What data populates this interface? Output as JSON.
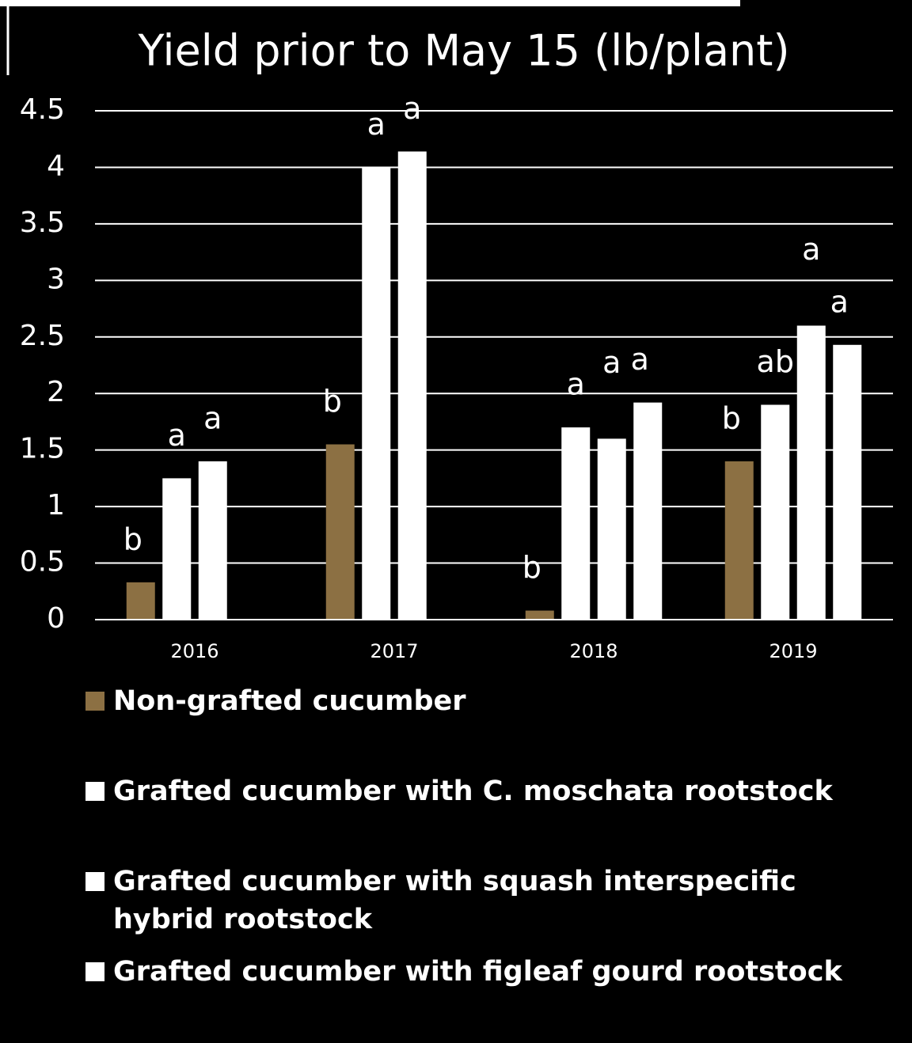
{
  "chart_data": {
    "type": "bar",
    "title": "Yield prior to May 15 (lb/plant)",
    "categories": [
      "2016",
      "2017",
      "2018",
      "2019"
    ],
    "series": [
      {
        "name": "Non-grafted cucumber",
        "color": "#8c7043",
        "values": [
          0.33,
          1.55,
          0.08,
          1.4
        ],
        "letters": [
          "b",
          "b",
          "b",
          "b"
        ]
      },
      {
        "name": "Grafted cucumber with C. moschata rootstock",
        "color": "#ffffff",
        "values": [
          1.25,
          4.0,
          1.7,
          1.9
        ],
        "letters": [
          "a",
          "a",
          "a",
          "ab"
        ]
      },
      {
        "name": "Grafted cucumber with squash interspecific hybrid rootstock",
        "color": "#ffffff",
        "values": [
          1.4,
          4.14,
          1.6,
          2.6
        ],
        "letters": [
          "a",
          "a",
          "a",
          "a"
        ]
      },
      {
        "name": "Grafted cucumber with figleaf gourd rootstock",
        "color": "#ffffff",
        "values": [
          null,
          null,
          1.92,
          2.43
        ],
        "letters": [
          null,
          null,
          "a",
          "a"
        ]
      }
    ],
    "ylim": [
      0,
      4.5
    ],
    "yticks": [
      0,
      0.5,
      1,
      1.5,
      2,
      2.5,
      3,
      3.5,
      4,
      4.5
    ],
    "grid": true
  }
}
